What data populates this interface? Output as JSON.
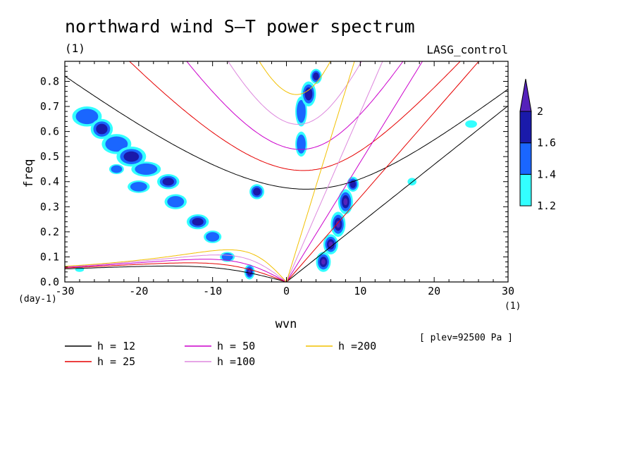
{
  "chart_data": {
    "type": "heatmap",
    "title": "northward wind S–T power spectrum",
    "subtitle_left": "(1)",
    "subtitle_right": "LASG_control",
    "xlabel": "wvn",
    "ylabel": "freq",
    "x_unit": "(1)",
    "y_unit": "(day-1)",
    "note": "[ plev=92500 Pa ]",
    "xlim": [
      -30,
      30
    ],
    "ylim": [
      0,
      0.88
    ],
    "xticks": [
      -30,
      -20,
      -10,
      0,
      10,
      20,
      30
    ],
    "xtick_labels": [
      "-30",
      "-20",
      "-10",
      "0",
      "10",
      "20",
      "30"
    ],
    "yticks": [
      0,
      0.1,
      0.2,
      0.3,
      0.4,
      0.5,
      0.6,
      0.7,
      0.8
    ],
    "ytick_labels": [
      "0.0",
      "0.1",
      "0.2",
      "0.3",
      "0.4",
      "0.5",
      "0.6",
      "0.7",
      "0.8"
    ],
    "colorbar": {
      "levels": [
        1.2,
        1.4,
        1.6,
        2
      ],
      "labels": [
        "1.2",
        "1.4",
        "1.6",
        "2"
      ],
      "colors": [
        "#33ffff",
        "#1a66ff",
        "#1a1aaa",
        "#5522bb"
      ]
    },
    "dispersion_curves": [
      {
        "name": "h = 12",
        "h": 12,
        "color": "#000000"
      },
      {
        "name": "h = 25",
        "h": 25,
        "color": "#e60000"
      },
      {
        "name": "h = 50",
        "h": 50,
        "color": "#cc00cc"
      },
      {
        "name": "h =100",
        "h": 100,
        "color": "#dd88dd"
      },
      {
        "name": "h =200",
        "h": 200,
        "color": "#f2c000"
      }
    ],
    "spectral_peaks": [
      {
        "k": -27,
        "f": 0.66,
        "w": 2.0,
        "hh": 0.04,
        "v": 1.5
      },
      {
        "k": -25,
        "f": 0.61,
        "w": 1.5,
        "hh": 0.04,
        "v": 1.75
      },
      {
        "k": -23,
        "f": 0.55,
        "w": 2.0,
        "hh": 0.04,
        "v": 1.5
      },
      {
        "k": -21,
        "f": 0.5,
        "w": 2.0,
        "hh": 0.04,
        "v": 1.6
      },
      {
        "k": -19,
        "f": 0.45,
        "w": 2.0,
        "hh": 0.03,
        "v": 1.5
      },
      {
        "k": -16,
        "f": 0.4,
        "w": 1.5,
        "hh": 0.03,
        "v": 1.6
      },
      {
        "k": -15,
        "f": 0.32,
        "w": 1.5,
        "hh": 0.03,
        "v": 1.5
      },
      {
        "k": -12,
        "f": 0.24,
        "w": 1.5,
        "hh": 0.03,
        "v": 1.7
      },
      {
        "k": -10,
        "f": 0.18,
        "w": 1.2,
        "hh": 0.025,
        "v": 1.5
      },
      {
        "k": -8,
        "f": 0.1,
        "w": 1.0,
        "hh": 0.02,
        "v": 1.4
      },
      {
        "k": -5,
        "f": 0.04,
        "w": 0.7,
        "hh": 0.03,
        "v": 2.1
      },
      {
        "k": -4,
        "f": 0.36,
        "w": 1.0,
        "hh": 0.03,
        "v": 1.8
      },
      {
        "k": -20,
        "f": 0.38,
        "w": 1.5,
        "hh": 0.025,
        "v": 1.5
      },
      {
        "k": -23,
        "f": 0.45,
        "w": 1.0,
        "hh": 0.02,
        "v": 1.4
      },
      {
        "k": 2,
        "f": 0.68,
        "w": 0.8,
        "hh": 0.06,
        "v": 1.55
      },
      {
        "k": 2,
        "f": 0.55,
        "w": 0.8,
        "hh": 0.05,
        "v": 1.5
      },
      {
        "k": 3,
        "f": 0.75,
        "w": 1.0,
        "hh": 0.05,
        "v": 1.6
      },
      {
        "k": 4,
        "f": 0.82,
        "w": 0.8,
        "hh": 0.03,
        "v": 1.7
      },
      {
        "k": 5,
        "f": 0.08,
        "w": 1.0,
        "hh": 0.04,
        "v": 2.1
      },
      {
        "k": 6,
        "f": 0.15,
        "w": 1.0,
        "hh": 0.04,
        "v": 2.1
      },
      {
        "k": 7,
        "f": 0.23,
        "w": 1.0,
        "hh": 0.05,
        "v": 2.1
      },
      {
        "k": 8,
        "f": 0.32,
        "w": 1.0,
        "hh": 0.05,
        "v": 2.0
      },
      {
        "k": 9,
        "f": 0.39,
        "w": 0.8,
        "hh": 0.03,
        "v": 1.6
      },
      {
        "k": -28,
        "f": 0.05,
        "w": 0.6,
        "hh": 0.01,
        "v": 1.3
      },
      {
        "k": 25,
        "f": 0.63,
        "w": 0.8,
        "hh": 0.015,
        "v": 1.3
      },
      {
        "k": 17,
        "f": 0.4,
        "w": 0.6,
        "hh": 0.015,
        "v": 1.3
      }
    ]
  }
}
